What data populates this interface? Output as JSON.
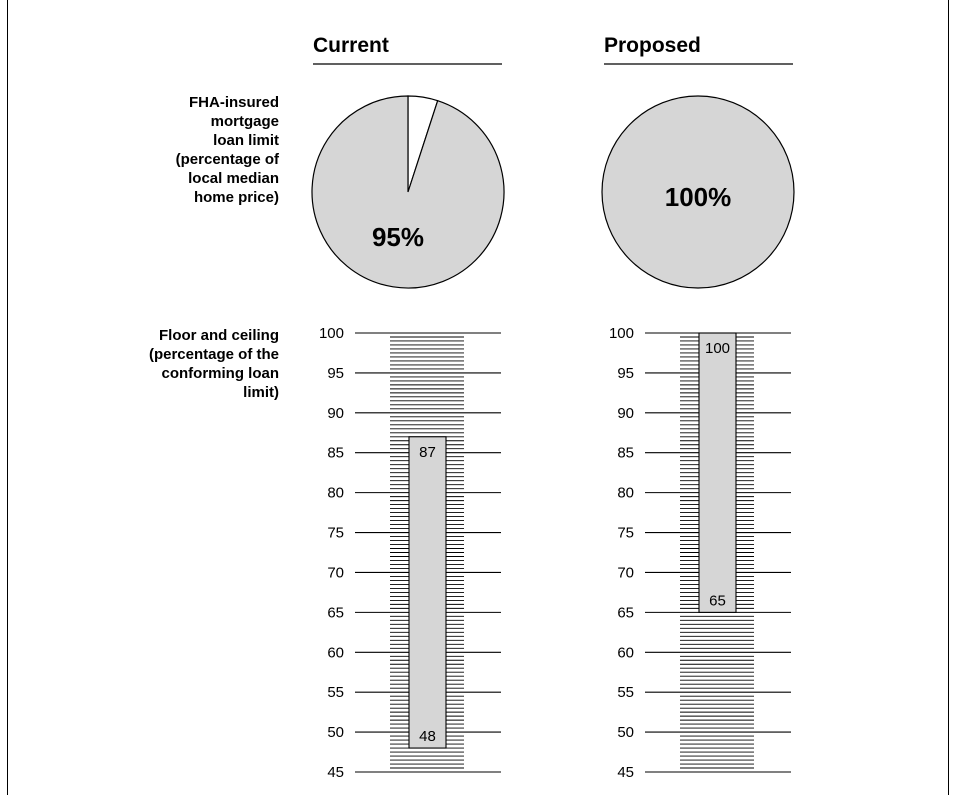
{
  "columns": {
    "current": "Current",
    "proposed": "Proposed"
  },
  "row_labels": {
    "pie": [
      "FHA-insured",
      "mortgage",
      "loan limit",
      "(percentage of",
      "local median",
      "home price)"
    ],
    "bar": [
      "Floor and ceiling",
      "(percentage of the",
      "conforming loan",
      "limit)"
    ]
  },
  "colors": {
    "fill": "#d6d6d6",
    "line": "#000000",
    "background": "#ffffff"
  },
  "chart_data": [
    {
      "type": "pie",
      "title": "Current",
      "values": [
        95,
        5
      ],
      "labels": [
        "95%",
        ""
      ],
      "series_colors": [
        "#d6d6d6",
        "#ffffff"
      ]
    },
    {
      "type": "pie",
      "title": "Proposed",
      "values": [
        100
      ],
      "labels": [
        "100%"
      ],
      "series_colors": [
        "#d6d6d6"
      ]
    },
    {
      "type": "bar",
      "orientation": "floating-range",
      "title": "Current",
      "ylim": [
        45,
        100
      ],
      "yticks": [
        45,
        50,
        55,
        60,
        65,
        70,
        75,
        80,
        85,
        90,
        95,
        100
      ],
      "minor_tick_step": 1,
      "range": {
        "low": 48,
        "high": 87
      },
      "labels": {
        "low": "48",
        "high": "87"
      }
    },
    {
      "type": "bar",
      "orientation": "floating-range",
      "title": "Proposed",
      "ylim": [
        45,
        100
      ],
      "yticks": [
        45,
        50,
        55,
        60,
        65,
        70,
        75,
        80,
        85,
        90,
        95,
        100
      ],
      "minor_tick_step": 1,
      "range": {
        "low": 65,
        "high": 100
      },
      "labels": {
        "low": "65",
        "high": "100"
      }
    }
  ]
}
